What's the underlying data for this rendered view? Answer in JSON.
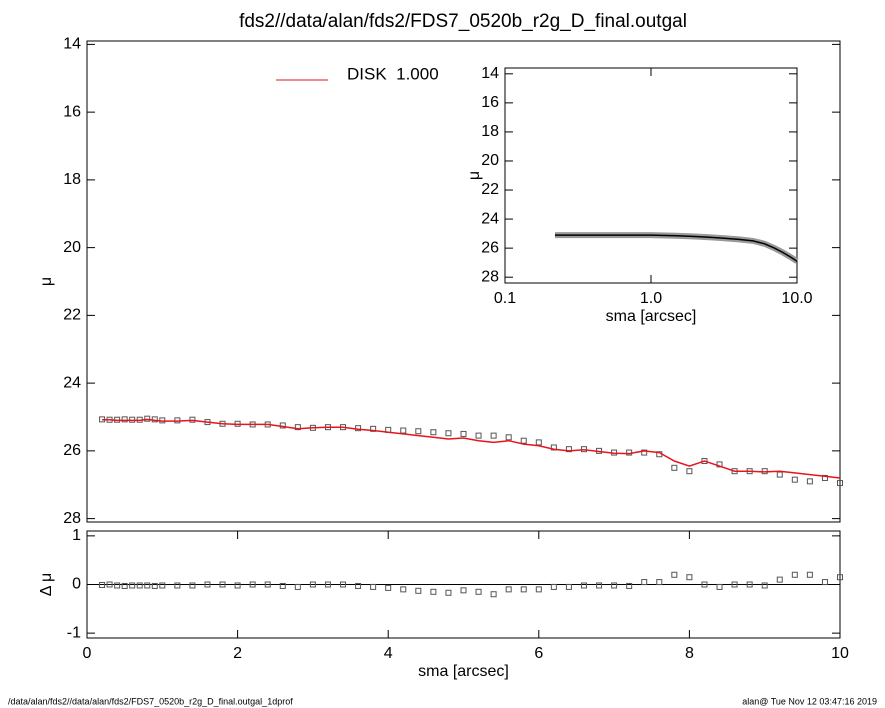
{
  "chart_data": [
    {
      "type": "profile",
      "title": "fds2//data/alan/fds2/FDS7_0520b_r2g_D_final.outgal",
      "ylabel": "μ",
      "xlim": [
        0,
        10
      ],
      "ylim": [
        28.1,
        13.9
      ],
      "yticks": [
        14,
        16,
        18,
        20,
        22,
        24,
        26,
        28
      ],
      "x": [
        0.2,
        0.3,
        0.4,
        0.5,
        0.6,
        0.7,
        0.8,
        0.9,
        1.0,
        1.2,
        1.4,
        1.6,
        1.8,
        2.0,
        2.2,
        2.4,
        2.6,
        2.8,
        3.0,
        3.2,
        3.4,
        3.6,
        3.8,
        4.0,
        4.2,
        4.4,
        4.6,
        4.8,
        5.0,
        5.2,
        5.4,
        5.6,
        5.8,
        6.0,
        6.2,
        6.4,
        6.6,
        6.8,
        7.0,
        7.2,
        7.4,
        7.6,
        7.8,
        8.0,
        8.2,
        8.4,
        8.6,
        8.8,
        9.0,
        9.2,
        9.4,
        9.6,
        9.8,
        10.0
      ],
      "series": [
        {
          "mode": "markers",
          "color": "#555555",
          "values": [
            25.07,
            25.08,
            25.08,
            25.07,
            25.08,
            25.08,
            25.05,
            25.07,
            25.1,
            25.1,
            25.08,
            25.15,
            25.2,
            25.2,
            25.22,
            25.22,
            25.25,
            25.3,
            25.32,
            25.3,
            25.3,
            25.33,
            25.35,
            25.38,
            25.4,
            25.42,
            25.45,
            25.48,
            25.5,
            25.55,
            25.55,
            25.6,
            25.7,
            25.75,
            25.9,
            25.95,
            25.95,
            26.0,
            26.05,
            26.05,
            26.05,
            26.1,
            26.5,
            26.6,
            26.3,
            26.4,
            26.6,
            26.6,
            26.6,
            26.7,
            26.85,
            26.9,
            26.8,
            26.95
          ]
        },
        {
          "mode": "line",
          "name": "DISK  1.000",
          "color": "#e8141c",
          "values": [
            25.08,
            25.08,
            25.1,
            25.1,
            25.1,
            25.1,
            25.07,
            25.1,
            25.12,
            25.12,
            25.1,
            25.15,
            25.2,
            25.22,
            25.22,
            25.22,
            25.28,
            25.35,
            25.32,
            25.3,
            25.3,
            25.36,
            25.4,
            25.45,
            25.5,
            25.55,
            25.6,
            25.65,
            25.62,
            25.7,
            25.75,
            25.7,
            25.8,
            25.85,
            25.95,
            26.0,
            25.97,
            26.02,
            26.07,
            26.08,
            26.0,
            26.05,
            26.3,
            26.45,
            26.3,
            26.45,
            26.6,
            26.6,
            26.62,
            26.6,
            26.65,
            26.7,
            26.75,
            26.8
          ]
        }
      ]
    },
    {
      "type": "residual",
      "ylabel": "Δ μ",
      "xlabel": "sma [arcsec]",
      "xlim": [
        0,
        10
      ],
      "xticks": [
        0,
        2,
        4,
        6,
        8,
        10
      ],
      "ylim": [
        -1.1,
        1.1
      ],
      "yticks": [
        1,
        0,
        -1
      ],
      "reference_line": 0,
      "x": [
        0.2,
        0.3,
        0.4,
        0.5,
        0.6,
        0.7,
        0.8,
        0.9,
        1.0,
        1.2,
        1.4,
        1.6,
        1.8,
        2.0,
        2.2,
        2.4,
        2.6,
        2.8,
        3.0,
        3.2,
        3.4,
        3.6,
        3.8,
        4.0,
        4.2,
        4.4,
        4.6,
        4.8,
        5.0,
        5.2,
        5.4,
        5.6,
        5.8,
        6.0,
        6.2,
        6.4,
        6.6,
        6.8,
        7.0,
        7.2,
        7.4,
        7.6,
        7.8,
        8.0,
        8.2,
        8.4,
        8.6,
        8.8,
        9.0,
        9.2,
        9.4,
        9.6,
        9.8,
        10.0
      ],
      "series": [
        {
          "mode": "markers",
          "color": "#555555",
          "values": [
            -0.01,
            0,
            -0.02,
            -0.03,
            -0.02,
            -0.02,
            -0.02,
            -0.03,
            -0.02,
            -0.02,
            -0.02,
            0,
            0,
            -0.02,
            0,
            0,
            -0.03,
            -0.05,
            0,
            0,
            0,
            -0.03,
            -0.05,
            -0.07,
            -0.1,
            -0.13,
            -0.15,
            -0.17,
            -0.12,
            -0.15,
            -0.2,
            -0.1,
            -0.1,
            -0.1,
            -0.05,
            -0.05,
            -0.02,
            -0.02,
            -0.02,
            -0.03,
            0.05,
            0.05,
            0.2,
            0.15,
            0,
            -0.05,
            0,
            0,
            -0.02,
            0.1,
            0.2,
            0.2,
            0.05,
            0.15
          ]
        }
      ]
    },
    {
      "type": "inset",
      "ylabel": "μ",
      "xlabel": "sma [arcsec]",
      "xscale": "log",
      "xlim": [
        0.1,
        10
      ],
      "xticks": [
        0.1,
        {
          "value": 1,
          "label": "1.0"
        },
        {
          "value": 10,
          "label": "10.0"
        }
      ],
      "ylim": [
        28.4,
        13.6
      ],
      "yticks": [
        14,
        16,
        18,
        20,
        22,
        24,
        26,
        28
      ],
      "x": [
        0.22,
        0.3,
        0.5,
        0.7,
        1,
        1.5,
        2,
        2.5,
        3,
        4,
        5,
        6,
        7,
        8,
        9,
        10
      ],
      "series": [
        {
          "mode": "line",
          "color": "#000000",
          "values": [
            25.1,
            25.1,
            25.1,
            25.1,
            25.1,
            25.15,
            25.2,
            25.25,
            25.3,
            25.4,
            25.5,
            25.7,
            26.0,
            26.3,
            26.6,
            26.9
          ]
        }
      ]
    }
  ],
  "footer": {
    "left": "/data/alan/fds2//data/alan/fds2/FDS7_0520b_r2g_D_final.outgal_1dprof",
    "right": "alan@  Tue Nov 12 03:47:16 2019"
  }
}
